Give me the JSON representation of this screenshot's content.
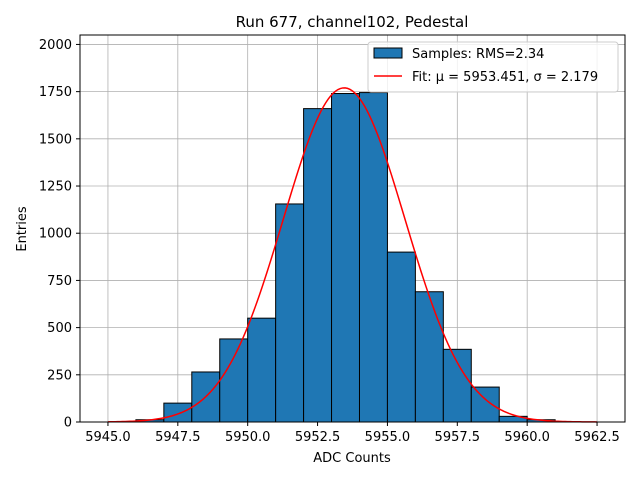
{
  "chart_data": {
    "type": "bar",
    "title": "Run 677, channel102, Pedestal",
    "xlabel": "ADC Counts",
    "ylabel": "Entries",
    "xlim": [
      5944.0,
      5963.5
    ],
    "ylim": [
      0,
      2050
    ],
    "xticks": [
      5945.0,
      5947.5,
      5950.0,
      5952.5,
      5955.0,
      5957.5,
      5960.0,
      5962.5
    ],
    "xtick_labels": [
      "5945.0",
      "5947.5",
      "5950.0",
      "5952.5",
      "5955.0",
      "5957.5",
      "5960.0",
      "5962.5"
    ],
    "yticks": [
      0,
      250,
      500,
      750,
      1000,
      1250,
      1500,
      1750,
      2000
    ],
    "ytick_labels": [
      "0",
      "250",
      "500",
      "750",
      "1000",
      "1250",
      "1500",
      "1750",
      "2000"
    ],
    "grid": true,
    "legend_position": "top-right",
    "bins": [
      {
        "x0": 5946,
        "x1": 5947,
        "count": 12
      },
      {
        "x0": 5947,
        "x1": 5948,
        "count": 100
      },
      {
        "x0": 5948,
        "x1": 5949,
        "count": 265
      },
      {
        "x0": 5949,
        "x1": 5950,
        "count": 440
      },
      {
        "x0": 5950,
        "x1": 5951,
        "count": 550
      },
      {
        "x0": 5951,
        "x1": 5952,
        "count": 1155
      },
      {
        "x0": 5952,
        "x1": 5953,
        "count": 1660
      },
      {
        "x0": 5953,
        "x1": 5954,
        "count": 1740
      },
      {
        "x0": 5954,
        "x1": 5955,
        "count": 1745
      },
      {
        "x0": 5955,
        "x1": 5956,
        "count": 900
      },
      {
        "x0": 5956,
        "x1": 5957,
        "count": 690
      },
      {
        "x0": 5957,
        "x1": 5958,
        "count": 385
      },
      {
        "x0": 5958,
        "x1": 5959,
        "count": 185
      },
      {
        "x0": 5959,
        "x1": 5960,
        "count": 30
      },
      {
        "x0": 5960,
        "x1": 5961,
        "count": 12
      }
    ],
    "fit": {
      "mu": 5953.451,
      "sigma": 2.179,
      "amplitude": 1770,
      "x_range": [
        5945.0,
        5962.5
      ]
    },
    "series": [
      {
        "name": "Samples: RMS=2.34",
        "kind": "histogram",
        "color": "#1f77b4"
      },
      {
        "name": "Fit: μ = 5953.451, σ = 2.179",
        "kind": "line",
        "color": "#ff0000"
      }
    ]
  }
}
